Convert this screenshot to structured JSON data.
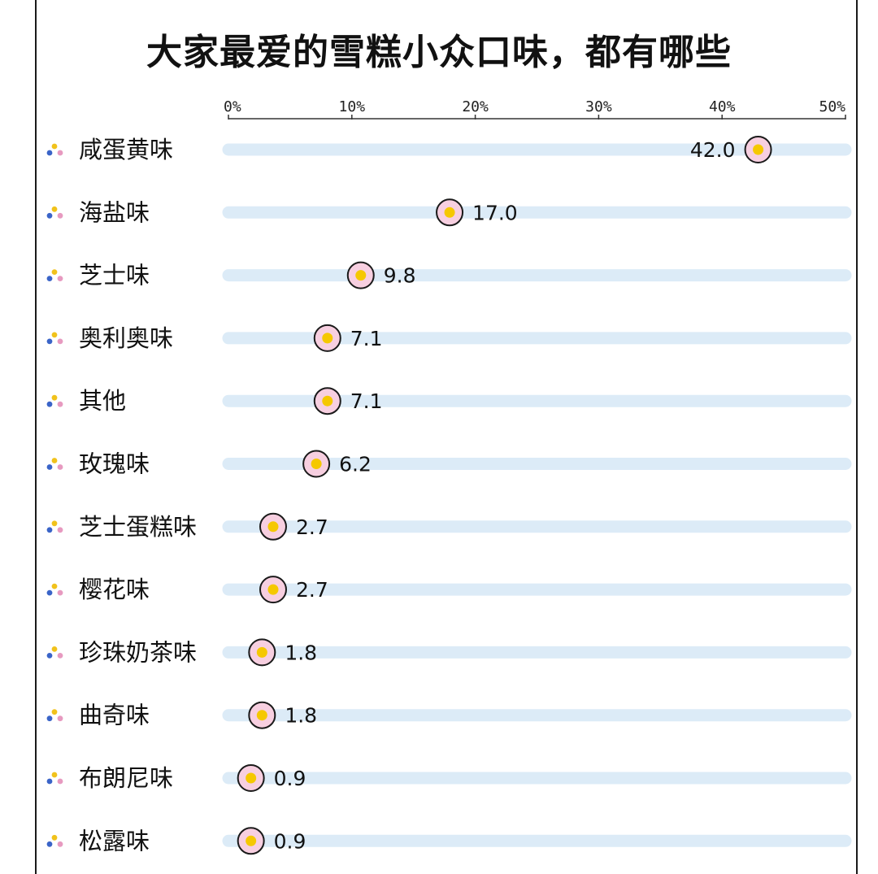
{
  "chart_data": {
    "type": "dot",
    "title": "大家最爱的雪糕小众口味，都有哪些",
    "xlim": [
      0,
      50
    ],
    "ticks": [
      "0%",
      "10%",
      "20%",
      "30%",
      "40%",
      "50%"
    ],
    "tick_values": [
      0,
      10,
      20,
      30,
      40,
      50
    ],
    "categories": [
      "咸蛋黄味",
      "海盐味",
      "芝士味",
      "奥利奥味",
      "其他",
      "玫瑰味",
      "芝士蛋糕味",
      "樱花味",
      "珍珠奶茶味",
      "曲奇味",
      "布朗尼味",
      "松露味"
    ],
    "values": [
      42.0,
      17.0,
      9.8,
      7.1,
      7.1,
      6.2,
      2.7,
      2.7,
      1.8,
      1.8,
      0.9,
      0.9
    ],
    "value_labels": [
      "42.0",
      "17.0",
      "9.8",
      "7.1",
      "7.1",
      "6.2",
      "2.7",
      "2.7",
      "1.8",
      "1.8",
      "0.9",
      "0.9"
    ],
    "colors": {
      "track": "#dcebf7",
      "dot_fill": "#f5c800",
      "dot_ring": "#f7cfe0",
      "dot_outline": "#1a1a1a",
      "bullet_blue": "#3a64c8",
      "bullet_yellow": "#f1c21b",
      "bullet_pink": "#e79ac0"
    }
  }
}
